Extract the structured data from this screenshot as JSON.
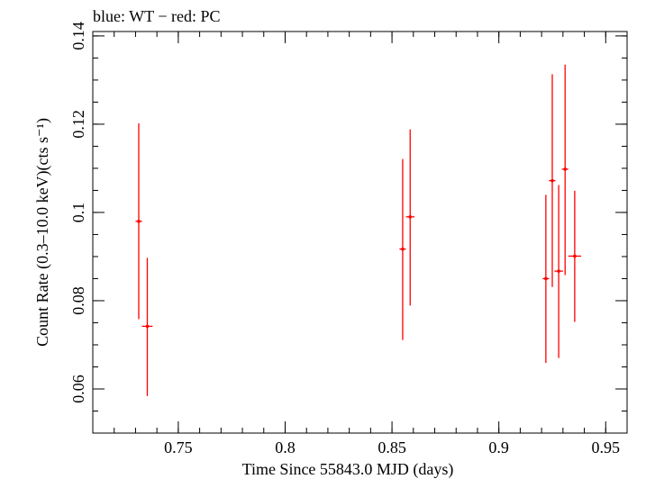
{
  "chart_data": {
    "type": "scatter",
    "title": "blue: WT − red: PC",
    "xlabel": "Time Since 55843.0 MJD (days)",
    "ylabel": "Count Rate (0.3–10.0 keV)(cts s⁻¹)",
    "xlim": [
      0.71,
      0.96
    ],
    "ylim": [
      0.05,
      0.141
    ],
    "x_ticks": [
      {
        "value": 0.75,
        "label": "0.75"
      },
      {
        "value": 0.8,
        "label": "0.8"
      },
      {
        "value": 0.85,
        "label": "0.85"
      },
      {
        "value": 0.9,
        "label": "0.9"
      },
      {
        "value": 0.95,
        "label": "0.95"
      }
    ],
    "y_ticks": [
      {
        "value": 0.06,
        "label": "0.06"
      },
      {
        "value": 0.08,
        "label": "0.08"
      },
      {
        "value": 0.1,
        "label": "0.1"
      },
      {
        "value": 0.12,
        "label": "0.12"
      },
      {
        "value": 0.14,
        "label": "0.14"
      }
    ],
    "series": [
      {
        "color": "#ff0000",
        "points": [
          {
            "x": 0.7315,
            "y": 0.098,
            "xerr": 0.0015,
            "ylo": 0.0758,
            "yhi": 0.1202
          },
          {
            "x": 0.7355,
            "y": 0.0742,
            "xerr": 0.0025,
            "ylo": 0.0584,
            "yhi": 0.0897
          },
          {
            "x": 0.855,
            "y": 0.0917,
            "xerr": 0.0015,
            "ylo": 0.0711,
            "yhi": 0.1121
          },
          {
            "x": 0.8585,
            "y": 0.099,
            "xerr": 0.002,
            "ylo": 0.0789,
            "yhi": 0.1188
          },
          {
            "x": 0.922,
            "y": 0.085,
            "xerr": 0.0015,
            "ylo": 0.0659,
            "yhi": 0.104
          },
          {
            "x": 0.925,
            "y": 0.1072,
            "xerr": 0.0015,
            "ylo": 0.0831,
            "yhi": 0.1313
          },
          {
            "x": 0.928,
            "y": 0.0867,
            "xerr": 0.002,
            "ylo": 0.067,
            "yhi": 0.1062
          },
          {
            "x": 0.931,
            "y": 0.1098,
            "xerr": 0.0015,
            "ylo": 0.0858,
            "yhi": 0.1335
          },
          {
            "x": 0.9355,
            "y": 0.0901,
            "xerr": 0.003,
            "ylo": 0.0752,
            "yhi": 0.1049
          }
        ]
      }
    ]
  }
}
